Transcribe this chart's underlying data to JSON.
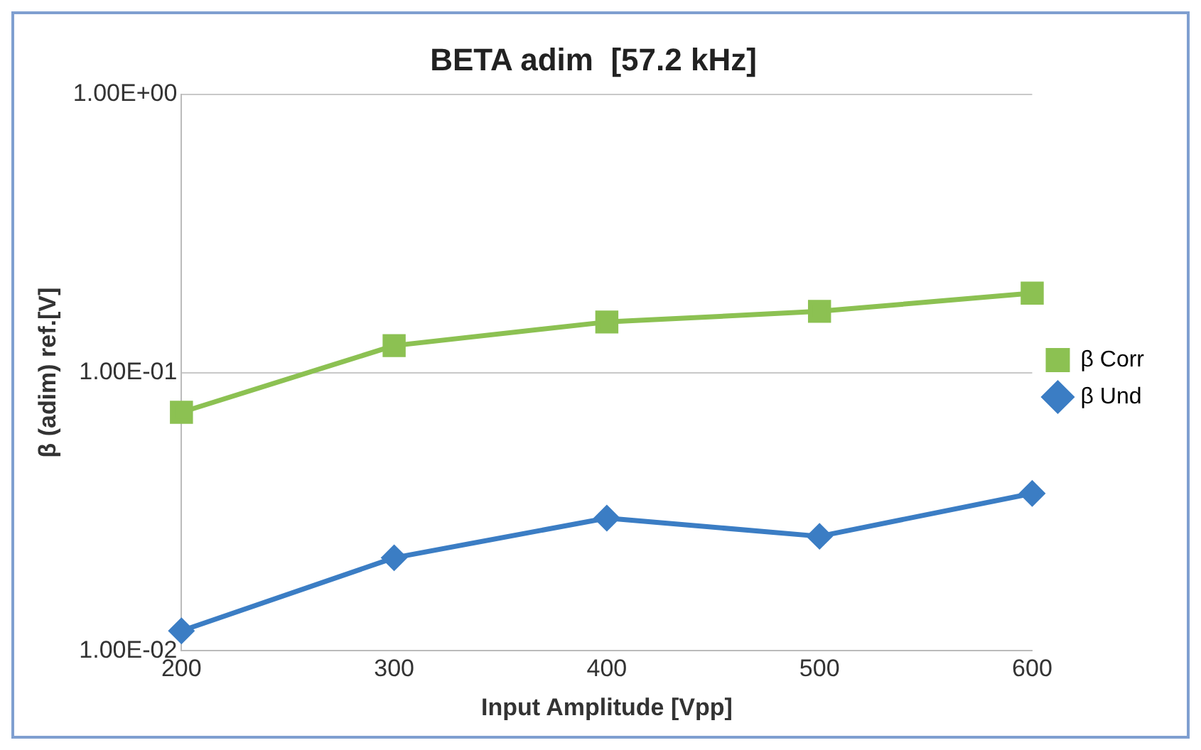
{
  "chart_data": {
    "type": "line",
    "title": "BETA adim  [57.2 kHz]",
    "xlabel": "Input Amplitude [Vpp]",
    "ylabel": "β (adim) ref.[V]",
    "x": [
      200,
      300,
      400,
      500,
      600
    ],
    "series": [
      {
        "name": "β Corr",
        "color": "#8cc152",
        "marker": "square",
        "values": [
          0.072,
          0.125,
          0.152,
          0.166,
          0.193
        ]
      },
      {
        "name": "β Und",
        "color": "#3b7dc4",
        "marker": "diamond",
        "values": [
          0.0118,
          0.0216,
          0.03,
          0.0258,
          0.0368
        ]
      }
    ],
    "xlim": [
      200,
      600
    ],
    "xticks": [
      200,
      300,
      400,
      500,
      600
    ],
    "ylim": [
      0.01,
      1
    ],
    "yticks": [
      {
        "value": 0.01,
        "label": "1.00E-02"
      },
      {
        "value": 0.1,
        "label": "1.00E-01"
      },
      {
        "value": 1,
        "label": "1.00E+00"
      }
    ],
    "log": "y",
    "grid": "y",
    "legend": "right",
    "line_style": "solid"
  }
}
